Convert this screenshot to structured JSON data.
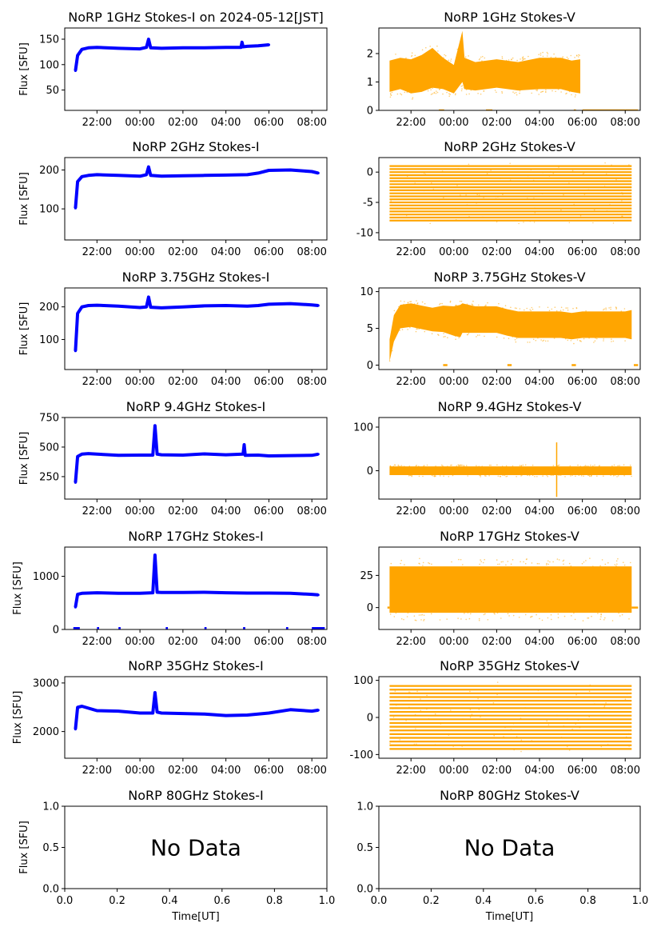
{
  "figure": {
    "xlabel": "Time[UT]",
    "time_ticks": [
      "22:00",
      "00:00",
      "02:00",
      "04:00",
      "06:00",
      "08:00"
    ],
    "nodata_ticks": [
      "0.0",
      "0.2",
      "0.4",
      "0.6",
      "0.8",
      "1.0"
    ],
    "nodata_text": "No Data",
    "colors": {
      "stokes_i": "#0000ff",
      "stokes_v": "#ffa500"
    }
  },
  "chart_data": [
    {
      "type": "line",
      "band": "1GHz",
      "stokes": "I",
      "title": "NoRP 1GHz Stokes-I on 2024-05-12[JST]",
      "ylabel": "Flux [SFU]",
      "ylim": [
        10,
        172
      ],
      "yticks": [
        50,
        100,
        150
      ],
      "x_hours_ut": [
        21.0,
        21.1,
        21.3,
        21.6,
        22.0,
        23.0,
        0.0,
        0.3,
        0.4,
        0.5,
        1.0,
        2.0,
        3.0,
        4.0,
        4.7,
        4.75,
        4.8,
        5.0,
        5.5,
        6.0
      ],
      "values": [
        88,
        118,
        130,
        133,
        134,
        132,
        131,
        134,
        150,
        133,
        132,
        133,
        133,
        134,
        134,
        144,
        135,
        136,
        137,
        139
      ]
    },
    {
      "type": "scatter",
      "band": "1GHz",
      "stokes": "V",
      "title": "NoRP 1GHz Stokes-V",
      "ylabel": "",
      "ylim": [
        0,
        2.9
      ],
      "yticks": [
        0,
        1,
        2
      ],
      "band_x_hours_ut": [
        21.0,
        21.5,
        22.0,
        22.5,
        23.0,
        23.5,
        0.0,
        0.4,
        0.5,
        1.0,
        2.0,
        3.0,
        4.0,
        5.0,
        5.5,
        5.9
      ],
      "band_center": [
        1.2,
        1.3,
        1.2,
        1.3,
        1.5,
        1.3,
        1.1,
        1.9,
        1.3,
        1.2,
        1.3,
        1.2,
        1.3,
        1.3,
        1.2,
        1.2
      ],
      "band_halfwidth": [
        0.55,
        0.55,
        0.6,
        0.65,
        0.7,
        0.55,
        0.5,
        0.9,
        0.55,
        0.5,
        0.5,
        0.5,
        0.55,
        0.55,
        0.55,
        0.6
      ],
      "zero_segments_hours_ut": [
        [
          23.3,
          23.55
        ],
        [
          1.5,
          1.8
        ],
        [
          5.6,
          5.7
        ],
        [
          6.0,
          8.6
        ]
      ]
    },
    {
      "type": "line",
      "band": "2GHz",
      "stokes": "I",
      "title": "NoRP 2GHz Stokes-I",
      "ylabel": "Flux [SFU]",
      "ylim": [
        20,
        232
      ],
      "yticks": [
        100,
        200
      ],
      "x_hours_ut": [
        21.0,
        21.1,
        21.3,
        21.6,
        22.0,
        23.0,
        0.0,
        0.3,
        0.4,
        0.5,
        1.0,
        2.0,
        3.0,
        4.0,
        5.0,
        5.5,
        6.0,
        7.0,
        8.0,
        8.3
      ],
      "values": [
        102,
        170,
        183,
        186,
        188,
        186,
        184,
        188,
        208,
        186,
        184,
        185,
        186,
        187,
        188,
        192,
        199,
        200,
        196,
        192
      ]
    },
    {
      "type": "scatter",
      "band": "2GHz",
      "stokes": "V",
      "title": "NoRP 2GHz Stokes-V",
      "ylabel": "",
      "ylim": [
        -11.2,
        2.4
      ],
      "yticks": [
        0,
        -5,
        -10
      ],
      "x_range_hours_ut": [
        21.0,
        8.3
      ],
      "stripe_levels": [
        1.0,
        0.5,
        0.0,
        -0.5,
        -1.0,
        -1.5,
        -2.0,
        -2.5,
        -3.0,
        -3.5,
        -4.0,
        -4.5,
        -5.0,
        -5.5,
        -6.0,
        -6.5,
        -7.0,
        -7.5,
        -8.0
      ]
    },
    {
      "type": "line",
      "band": "3.75GHz",
      "stokes": "I",
      "title": "NoRP 3.75GHz Stokes-I",
      "ylabel": "Flux [SFU]",
      "ylim": [
        8,
        258
      ],
      "yticks": [
        100,
        200
      ],
      "x_hours_ut": [
        21.0,
        21.1,
        21.3,
        21.6,
        22.0,
        23.0,
        0.0,
        0.3,
        0.4,
        0.5,
        1.0,
        2.0,
        3.0,
        4.0,
        5.0,
        5.5,
        6.0,
        7.0,
        8.0,
        8.3
      ],
      "values": [
        65,
        180,
        200,
        204,
        205,
        202,
        198,
        200,
        230,
        199,
        197,
        200,
        203,
        204,
        202,
        204,
        208,
        210,
        206,
        204
      ]
    },
    {
      "type": "scatter",
      "band": "3.75GHz",
      "stokes": "V",
      "title": "NoRP 3.75GHz Stokes-V",
      "ylabel": "",
      "ylim": [
        -0.6,
        10.5
      ],
      "yticks": [
        0,
        5,
        10
      ],
      "band_x_hours_ut": [
        21.0,
        21.2,
        21.5,
        22.0,
        22.5,
        23.0,
        23.5,
        0.0,
        0.3,
        0.4,
        1.0,
        2.0,
        2.5,
        3.0,
        4.0,
        5.0,
        5.5,
        6.0,
        7.0,
        8.0,
        8.3
      ],
      "band_center": [
        2.0,
        5.0,
        6.6,
        6.8,
        6.5,
        6.2,
        6.3,
        6.0,
        6.0,
        6.4,
        6.2,
        6.2,
        5.8,
        5.5,
        5.5,
        5.5,
        5.3,
        5.5,
        5.5,
        5.5,
        5.5
      ],
      "band_halfwidth": [
        1.5,
        1.8,
        1.6,
        1.6,
        1.6,
        1.6,
        1.8,
        2.0,
        2.2,
        2.0,
        1.8,
        1.8,
        1.8,
        1.8,
        1.8,
        1.8,
        1.8,
        1.8,
        1.8,
        1.8,
        2.0
      ],
      "zero_segments_hours_ut": [
        [
          23.5,
          23.7
        ],
        [
          2.5,
          2.7
        ],
        [
          5.5,
          5.7
        ],
        [
          8.4,
          8.6
        ]
      ]
    },
    {
      "type": "line",
      "band": "9.4GHz",
      "stokes": "I",
      "title": "NoRP 9.4GHz Stokes-I",
      "ylabel": "Flux [SFU]",
      "ylim": [
        60,
        750
      ],
      "yticks": [
        250,
        500,
        750
      ],
      "x_hours_ut": [
        21.0,
        21.1,
        21.3,
        21.6,
        22.0,
        23.0,
        0.0,
        0.6,
        0.7,
        0.8,
        1.0,
        2.0,
        3.0,
        4.0,
        4.8,
        4.85,
        4.9,
        5.5,
        6.0,
        7.0,
        8.0,
        8.3
      ],
      "values": [
        200,
        420,
        440,
        445,
        440,
        430,
        432,
        432,
        680,
        440,
        435,
        432,
        442,
        435,
        440,
        520,
        430,
        432,
        425,
        428,
        430,
        440
      ]
    },
    {
      "type": "scatter",
      "band": "9.4GHz",
      "stokes": "V",
      "title": "NoRP 9.4GHz Stokes-V",
      "ylabel": "",
      "ylim": [
        -65,
        122
      ],
      "yticks": [
        0,
        100
      ],
      "band_x_hours_ut": [
        21.0,
        8.3
      ],
      "band_center": [
        0,
        0
      ],
      "band_halfwidth": [
        10,
        10
      ],
      "spike_hours_ut": [
        4.8
      ],
      "spike_range": [
        -60,
        65
      ]
    },
    {
      "type": "line",
      "band": "17GHz",
      "stokes": "I",
      "title": "NoRP 17GHz Stokes-I",
      "ylabel": "Flux [SFU]",
      "ylim": [
        0,
        1550
      ],
      "yticks": [
        0,
        1000
      ],
      "x_hours_ut": [
        21.0,
        21.1,
        21.3,
        22.0,
        23.0,
        0.0,
        0.6,
        0.7,
        0.8,
        1.0,
        2.0,
        3.0,
        4.0,
        5.0,
        6.0,
        7.0,
        8.0,
        8.3
      ],
      "values": [
        420,
        660,
        680,
        690,
        680,
        680,
        690,
        1400,
        700,
        695,
        695,
        700,
        690,
        685,
        685,
        680,
        660,
        650
      ],
      "zero_segments_hours_ut": [
        [
          20.9,
          21.2
        ],
        [
          22.0,
          22.1
        ],
        [
          23.0,
          23.1
        ],
        [
          1.2,
          1.3
        ],
        [
          3.0,
          3.1
        ],
        [
          4.8,
          4.9
        ],
        [
          6.8,
          6.9
        ],
        [
          8.0,
          8.6
        ]
      ]
    },
    {
      "type": "scatter",
      "band": "17GHz",
      "stokes": "V",
      "title": "NoRP 17GHz Stokes-V",
      "ylabel": "",
      "ylim": [
        -17,
        47
      ],
      "yticks": [
        0,
        25
      ],
      "band_x_hours_ut": [
        21.0,
        8.3
      ],
      "band_center": [
        14,
        14
      ],
      "band_halfwidth": [
        18,
        18
      ],
      "zero_segments_hours_ut": [
        [
          20.9,
          21.0
        ],
        [
          8.3,
          8.6
        ]
      ]
    },
    {
      "type": "line",
      "band": "35GHz",
      "stokes": "I",
      "title": "NoRP 35GHz Stokes-I",
      "ylabel": "Flux [SFU]",
      "ylim": [
        1450,
        3130
      ],
      "yticks": [
        2000,
        3000
      ],
      "x_hours_ut": [
        21.0,
        21.1,
        21.3,
        22.0,
        23.0,
        0.0,
        0.6,
        0.7,
        0.8,
        1.0,
        2.0,
        3.0,
        4.0,
        5.0,
        6.0,
        7.0,
        8.0,
        8.3
      ],
      "values": [
        2050,
        2500,
        2520,
        2430,
        2420,
        2380,
        2380,
        2800,
        2400,
        2380,
        2370,
        2360,
        2330,
        2340,
        2380,
        2450,
        2420,
        2440
      ]
    },
    {
      "type": "scatter",
      "band": "35GHz",
      "stokes": "V",
      "title": "NoRP 35GHz Stokes-V",
      "ylabel": "",
      "ylim": [
        -110,
        110
      ],
      "yticks": [
        100,
        0,
        -100
      ],
      "x_range_hours_ut": [
        21.0,
        8.3
      ],
      "stripe_levels": [
        85,
        75,
        65,
        55,
        45,
        35,
        25,
        15,
        5,
        -5,
        -15,
        -25,
        -35,
        -45,
        -55,
        -65,
        -75,
        -85
      ]
    },
    {
      "type": "empty",
      "band": "80GHz",
      "stokes": "I",
      "title": "NoRP 80GHz Stokes-I",
      "ylabel": "Flux [SFU]",
      "ylim": [
        0,
        1
      ],
      "yticks": [
        "0.0",
        "0.5",
        "1.0"
      ]
    },
    {
      "type": "empty",
      "band": "80GHz",
      "stokes": "V",
      "title": "NoRP 80GHz Stokes-V",
      "ylabel": "",
      "ylim": [
        0,
        1
      ],
      "yticks": [
        "0.0",
        "0.5",
        "1.0"
      ]
    }
  ]
}
